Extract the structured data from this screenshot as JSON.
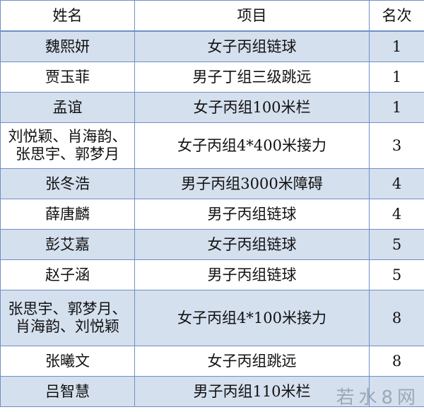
{
  "table": {
    "headers": [
      "姓名",
      "项目",
      "名次"
    ],
    "rows": [
      {
        "name": "魏熙妍",
        "event": "女子丙组链球",
        "rank": "1"
      },
      {
        "name": "贾玉菲",
        "event": "男子丁组三级跳远",
        "rank": "1"
      },
      {
        "name": "孟谊",
        "event": "女子丙组100米栏",
        "rank": "1"
      },
      {
        "name": "刘悦颖、肖海韵、张思宇、郭梦月",
        "event": "女子丙组4*400米接力",
        "rank": "3"
      },
      {
        "name": "张冬浩",
        "event": "男子丙组3000米障碍",
        "rank": "4"
      },
      {
        "name": "薛唐麟",
        "event": "男子丙组链球",
        "rank": "4"
      },
      {
        "name": "彭艾嘉",
        "event": "女子丙组链球",
        "rank": "5"
      },
      {
        "name": "赵子涵",
        "event": "男子丙组链球",
        "rank": "5"
      },
      {
        "name": "张思宇、郭梦月、肖海韵、刘悦颖",
        "event": "女子丙组4*100米接力",
        "rank": "8"
      },
      {
        "name": "张曦文",
        "event": "女子丙组跳远",
        "rank": "8"
      },
      {
        "name": "吕智慧",
        "event": "男子丙组110米栏",
        "rank": ""
      }
    ]
  },
  "watermark": "若水8网",
  "colors": {
    "band": "#d5e0ee",
    "border": "#6f8fc6"
  }
}
